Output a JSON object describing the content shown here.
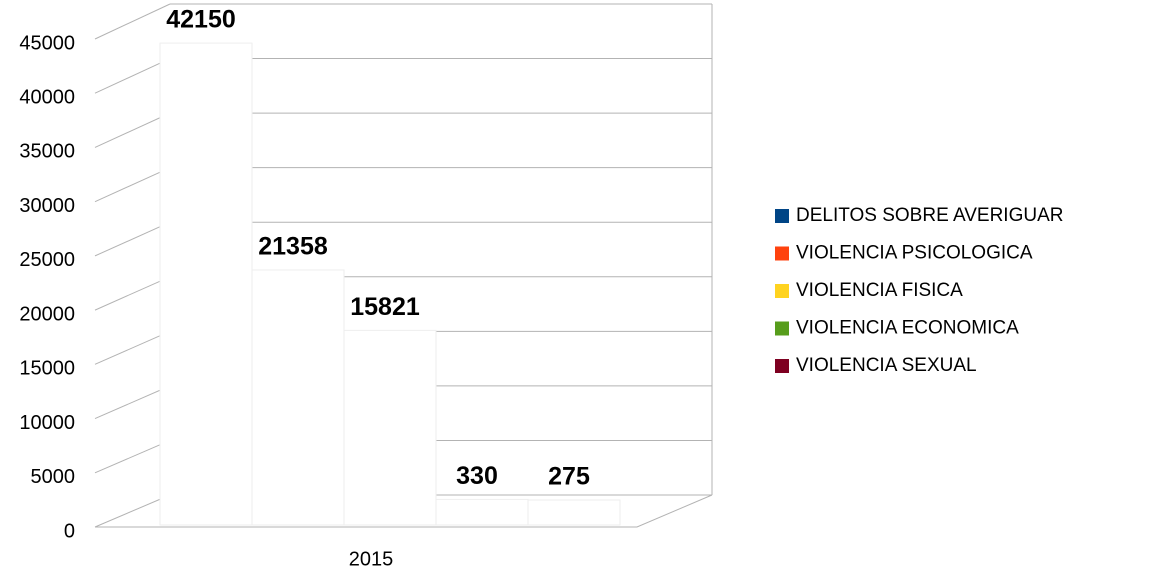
{
  "chart_data": {
    "type": "bar",
    "view": "3d",
    "categories": [
      "2015"
    ],
    "series": [
      {
        "name": "DELITOS SOBRE AVERIGUAR",
        "color": "#004586",
        "values": [
          42150
        ]
      },
      {
        "name": "VIOLENCIA PSICOLOGICA",
        "color": "#ff420e",
        "values": [
          21358
        ]
      },
      {
        "name": "VIOLENCIA FISICA",
        "color": "#ffd320",
        "values": [
          15821
        ]
      },
      {
        "name": "VIOLENCIA ECONOMICA",
        "color": "#579d1c",
        "values": [
          330
        ]
      },
      {
        "name": "VIOLENCIA SEXUAL",
        "color": "#7e0021",
        "values": [
          275
        ]
      }
    ],
    "bar_fill": "#ffffff",
    "ylim": [
      0,
      45000
    ],
    "yticks": [
      0,
      5000,
      10000,
      15000,
      20000,
      25000,
      30000,
      35000,
      40000,
      45000
    ],
    "grid": true,
    "legend": "right"
  }
}
